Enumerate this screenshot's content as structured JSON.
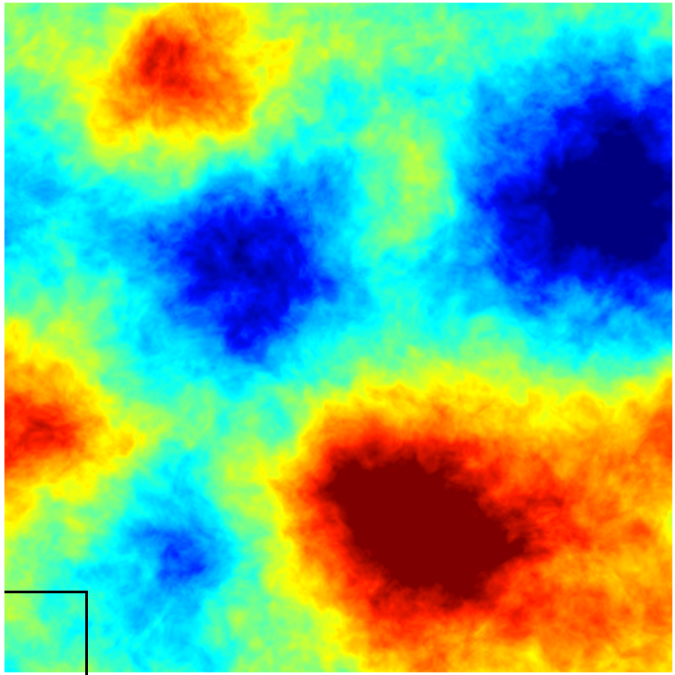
{
  "image": {
    "kind": "scalar-field-colormap",
    "colormap": "jet",
    "colormap_stops": [
      "#00007f",
      "#0010ff",
      "#00a0ff",
      "#00ffff",
      "#80ff80",
      "#ffff00",
      "#ff9000",
      "#ff2000",
      "#7f0000"
    ],
    "background_color": "#ffffff",
    "inset_box_color": "#000000",
    "features": [
      "low-value-region-upper-right",
      "low-value-region-center-left",
      "high-value-region-lower-center-right",
      "high-value-region-upper-left",
      "high-value-region-left-edge",
      "low-value-region-lower-left"
    ]
  }
}
